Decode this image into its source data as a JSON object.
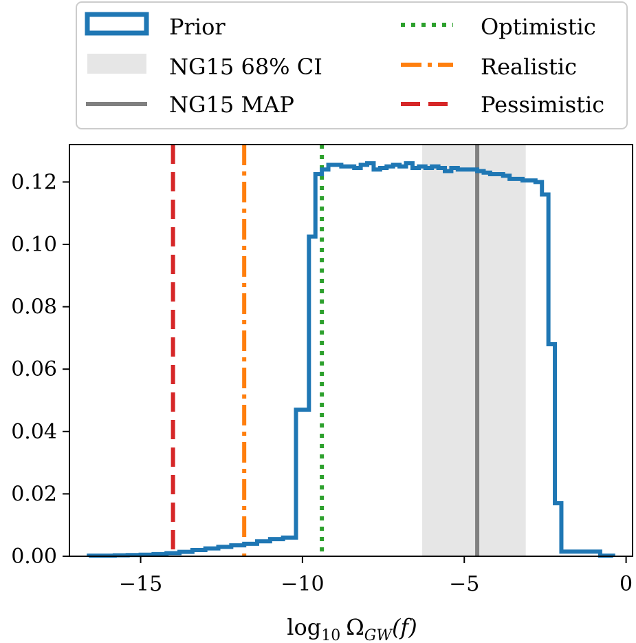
{
  "chart_data": {
    "type": "line",
    "title": "",
    "xlabel": "log10 Ω_GW(f)",
    "xlabel_parts": {
      "base": "log",
      "sub": "10",
      "symbol": "Ω",
      "symbol_sub": "GW",
      "arg": "(f)"
    },
    "ylabel": "",
    "xlim": [
      -17.2,
      0.2
    ],
    "ylim": [
      0,
      0.132
    ],
    "xticks": [
      -15,
      -10,
      -5,
      0
    ],
    "xtick_labels": [
      "−15",
      "−10",
      "−5",
      "0"
    ],
    "yticks": [
      0,
      0.02,
      0.04,
      0.06,
      0.08,
      0.1,
      0.12
    ],
    "ytick_labels": [
      "0.00",
      "0.02",
      "0.04",
      "0.06",
      "0.08",
      "0.10",
      "0.12"
    ],
    "grid": false,
    "legend_position": "top (above plot)",
    "histogram": {
      "name": "Prior",
      "color": "#1f77b4",
      "bin_edges": [
        -16.6,
        -16.2,
        -15.8,
        -15.4,
        -15.0,
        -14.6,
        -14.2,
        -13.8,
        -13.4,
        -13.0,
        -12.6,
        -12.2,
        -11.8,
        -11.4,
        -11.0,
        -10.6,
        -10.2,
        -9.8,
        -9.6,
        -9.4,
        -9.2,
        -9.0,
        -8.8,
        -8.6,
        -8.4,
        -8.2,
        -8.0,
        -7.8,
        -7.6,
        -7.4,
        -7.2,
        -7.0,
        -6.8,
        -6.6,
        -6.4,
        -6.2,
        -6.0,
        -5.8,
        -5.6,
        -5.4,
        -5.2,
        -5.0,
        -4.8,
        -4.6,
        -4.4,
        -4.2,
        -4.0,
        -3.8,
        -3.6,
        -3.4,
        -3.2,
        -3.0,
        -2.8,
        -2.6,
        -2.4,
        -2.2,
        -2.0,
        -1.8,
        -1.6,
        -1.4,
        -1.2,
        -1.0,
        -0.8,
        -0.4
      ],
      "values": [
        0.0002,
        0.0002,
        0.0003,
        0.0004,
        0.0005,
        0.0007,
        0.001,
        0.0014,
        0.002,
        0.0025,
        0.003,
        0.0035,
        0.004,
        0.0048,
        0.0055,
        0.006,
        0.047,
        0.1025,
        0.1225,
        0.124,
        0.1255,
        0.1255,
        0.125,
        0.125,
        0.1245,
        0.1255,
        0.126,
        0.124,
        0.1245,
        0.125,
        0.1255,
        0.125,
        0.126,
        0.1245,
        0.125,
        0.1245,
        0.125,
        0.1245,
        0.1235,
        0.1245,
        0.124,
        0.124,
        0.124,
        0.1235,
        0.123,
        0.1225,
        0.1225,
        0.122,
        0.121,
        0.121,
        0.1205,
        0.1205,
        0.12,
        0.116,
        0.068,
        0.017,
        0.0015,
        0.0015,
        0.0015,
        0.0015,
        0.0015,
        0.0015,
        0.0002
      ]
    },
    "ci_band": {
      "name": "NG15 68% CI",
      "x": [
        -6.3,
        -3.1
      ],
      "color": "#d9d9d9"
    },
    "vlines": [
      {
        "name": "NG15 MAP",
        "x": -4.6,
        "color": "#808080",
        "style": "solid"
      },
      {
        "name": "Optimistic",
        "x": -9.4,
        "color": "#2ca02c",
        "style": "dotted"
      },
      {
        "name": "Realistic",
        "x": -11.8,
        "color": "#ff7f0e",
        "style": "dashdot"
      },
      {
        "name": "Pessimistic",
        "x": -14.0,
        "color": "#d62728",
        "style": "dashed"
      }
    ]
  },
  "legend": {
    "items": [
      {
        "label": "Prior",
        "key": "prior"
      },
      {
        "label": "NG15 68% CI",
        "key": "ci"
      },
      {
        "label": "NG15 MAP",
        "key": "map"
      },
      {
        "label": "Optimistic",
        "key": "optimistic"
      },
      {
        "label": "Realistic",
        "key": "realistic"
      },
      {
        "label": "Pessimistic",
        "key": "pessimistic"
      }
    ]
  }
}
